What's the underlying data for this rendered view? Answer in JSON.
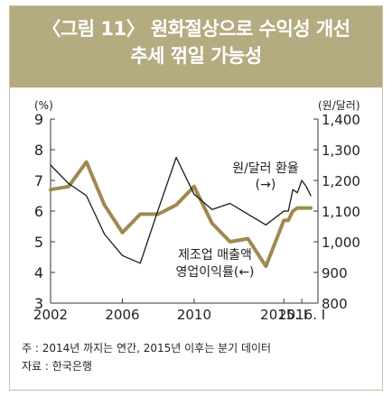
{
  "title_line1": "〈그림 11〉 원화절상으로 수익성 개선",
  "title_line2": "추세 꺾일 가능성",
  "footnote": "주 : 2014년 까지는 연간, 2015년 이후는 분기 데이터",
  "source": "자료 : 한국은행",
  "colors": {
    "title_bg": "#b4ab80",
    "line_margin": "#9e8a50",
    "line_fx": "#1a1a1a"
  },
  "chart_data": {
    "type": "line",
    "left_axis_unit": "(%)",
    "right_axis_unit": "(원/달러)",
    "left_ylim": [
      3,
      9
    ],
    "right_ylim": [
      800,
      1400
    ],
    "left_ticks": [
      "3",
      "4",
      "5",
      "6",
      "7",
      "8",
      "9"
    ],
    "right_ticks": [
      "800",
      "900",
      "1,000",
      "1,100",
      "1,200",
      "1,300",
      "1,400"
    ],
    "x_tick_labels": [
      "2002",
      "2006",
      "2010",
      "2015. Ⅰ",
      "2016. Ⅰ"
    ],
    "x_tick_positions": [
      2002,
      2006,
      2010,
      2015,
      2016
    ],
    "grid": false,
    "series": [
      {
        "name": "제조업 매출액 영업이익률(←)",
        "axis": "left",
        "x": [
          2002,
          2003,
          2004,
          2005,
          2006,
          2007,
          2008,
          2009,
          2010,
          2011,
          2012,
          2013,
          2014,
          2015.0,
          2015.25,
          2015.5,
          2015.75,
          2016.0,
          2016.25,
          2016.5
        ],
        "values": [
          6.7,
          6.8,
          7.6,
          6.2,
          5.3,
          5.9,
          5.9,
          6.2,
          6.8,
          5.6,
          5.0,
          5.1,
          4.2,
          5.7,
          5.7,
          6.0,
          6.1,
          6.1,
          6.1,
          6.1
        ]
      },
      {
        "name": "원/달러 환율(→)",
        "axis": "right",
        "x": [
          2002,
          2003,
          2004,
          2005,
          2006,
          2007,
          2008,
          2009,
          2010,
          2011,
          2012,
          2013,
          2014,
          2015.0,
          2015.25,
          2015.5,
          2015.75,
          2016.0,
          2016.25,
          2016.5
        ],
        "values": [
          1250,
          1190,
          1150,
          1025,
          955,
          930,
          1105,
          1275,
          1155,
          1105,
          1125,
          1090,
          1055,
          1100,
          1100,
          1170,
          1160,
          1200,
          1180,
          1150
        ]
      }
    ],
    "annotations": [
      {
        "text_lines": [
          "원/달러 환율",
          "(→)"
        ],
        "series": "원/달러 환율(→)"
      },
      {
        "text_lines": [
          "제조업 매출액",
          "영업이익률(←)"
        ],
        "series": "제조업 매출액 영업이익률(←)"
      }
    ]
  }
}
